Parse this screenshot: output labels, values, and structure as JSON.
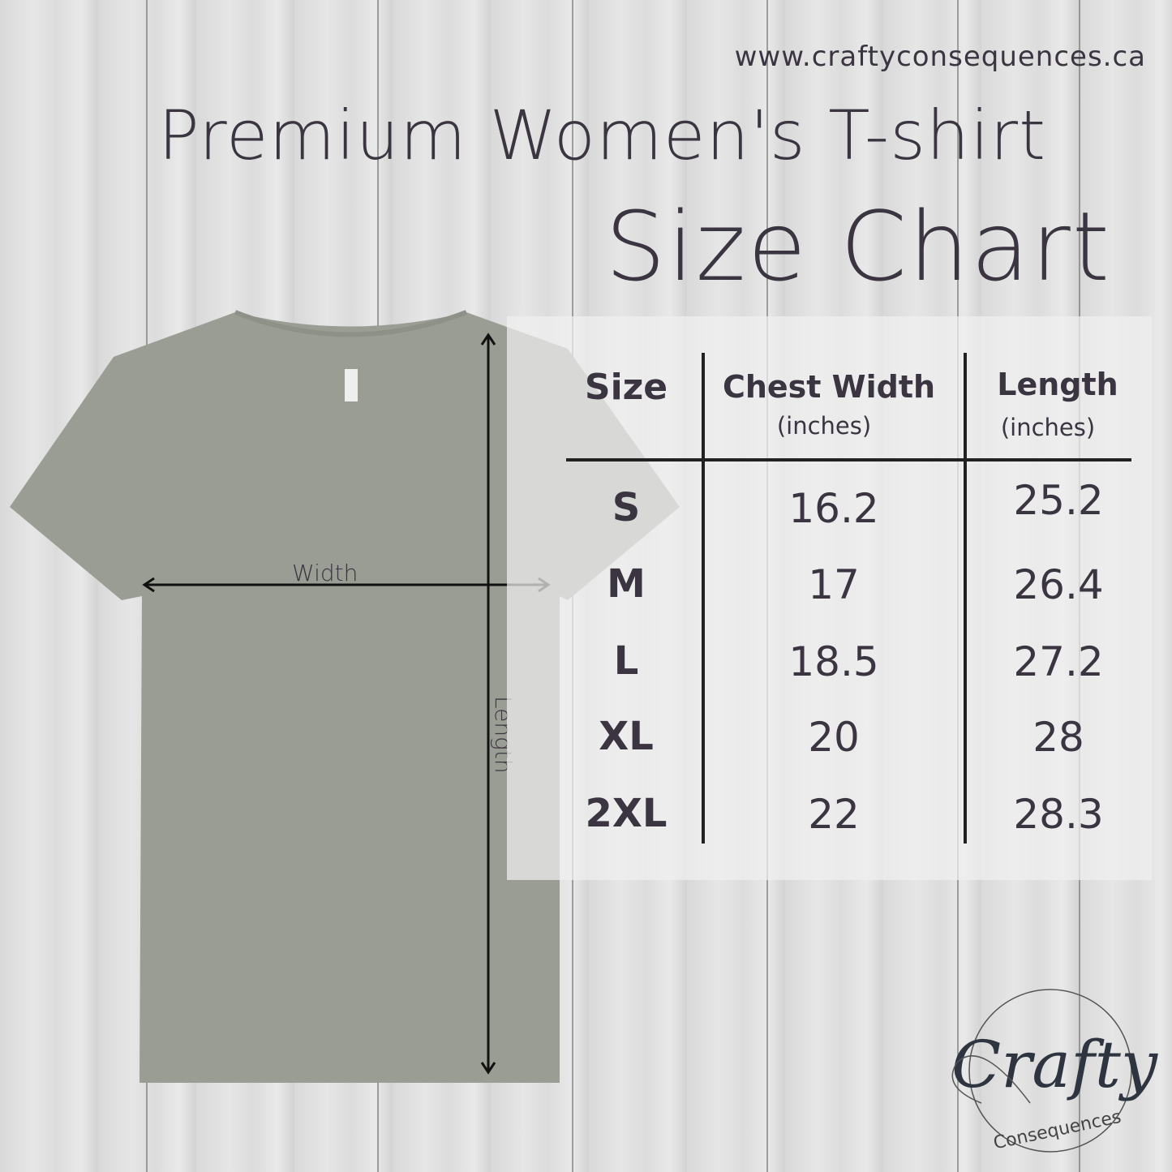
{
  "website": "www.craftyconsequences.ca",
  "title": "Premium Women's T-shirt",
  "subtitle": "Size Chart",
  "diagram": {
    "width_label": "Width",
    "length_label": "Length",
    "shirt_color": "#9a9d93"
  },
  "table": {
    "headers": [
      {
        "label": "Size",
        "unit": ""
      },
      {
        "label": "Chest Width",
        "unit": "(inches)"
      },
      {
        "label": "Length",
        "unit": "(inches)"
      }
    ],
    "rows": [
      {
        "size": "S",
        "chest": "16.2",
        "length": "25.2"
      },
      {
        "size": "M",
        "chest": "17",
        "length": "26.4"
      },
      {
        "size": "L",
        "chest": "18.5",
        "length": "27.2"
      },
      {
        "size": "XL",
        "chest": "20",
        "length": "28"
      },
      {
        "size": "2XL",
        "chest": "22",
        "length": "28.3"
      }
    ]
  },
  "logo": {
    "text": "Crafty",
    "subtext": "Consequences"
  },
  "colors": {
    "text": "#3a3540",
    "background": "#dedede"
  }
}
